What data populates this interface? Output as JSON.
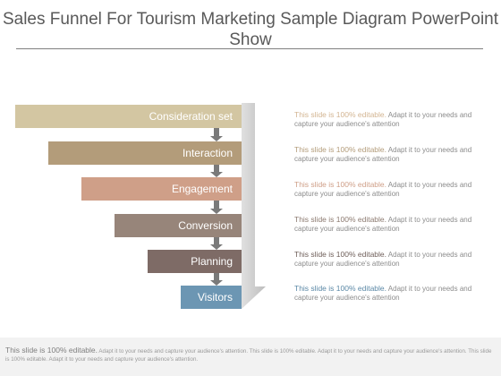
{
  "slide": {
    "title": "Sales Funnel For Tourism Marketing Sample Diagram PowerPoint Show"
  },
  "funnel": {
    "stages": [
      {
        "label": "Consideration set",
        "color": "#d3c6a2",
        "side": "#b4a57f"
      },
      {
        "label": "Interaction",
        "color": "#b39c7a",
        "side": "#94805e"
      },
      {
        "label": "Engagement",
        "color": "#cf9f88",
        "side": "#ad7f69"
      },
      {
        "label": "Conversion",
        "color": "#97857a",
        "side": "#786659"
      },
      {
        "label": "Planning",
        "color": "#7e6b66",
        "side": "#604f4a"
      },
      {
        "label": "Visitors",
        "color": "#6c96b3",
        "side": "#4d7894"
      }
    ],
    "descriptions": [
      {
        "highlight": "This slide is 100% editable.",
        "text": "Adapt it to your needs and capture your audience's attention",
        "color": "#d3b592"
      },
      {
        "highlight": "This slide is 100% editable.",
        "text": "Adapt it to your needs and capture your audience's attention",
        "color": "#b39c7a"
      },
      {
        "highlight": "This slide is 100% editable.",
        "text": "Adapt it to your needs and capture your audience's attention",
        "color": "#cf9f88"
      },
      {
        "highlight": "This slide is 100% editable.",
        "text": "Adapt it to your needs and capture your audience's attention",
        "color": "#8c7a70"
      },
      {
        "highlight": "This slide is 100% editable.",
        "text": "Adapt it to your needs and capture your audience's attention",
        "color": "#6f5f5a"
      },
      {
        "highlight": "This slide is 100% editable.",
        "text": "Adapt it to your needs and capture your audience's attention",
        "color": "#5b88a6"
      }
    ],
    "arrow_color": "#7a7a7a"
  },
  "footer": {
    "lead": "This slide is 100% editable.",
    "text": "Adapt it to your needs and capture your audience's attention. This slide is 100% editable. Adapt it to your needs and capture your audience's attention. This slide is 100% editable. Adapt it to your needs and capture your audience's attention."
  }
}
